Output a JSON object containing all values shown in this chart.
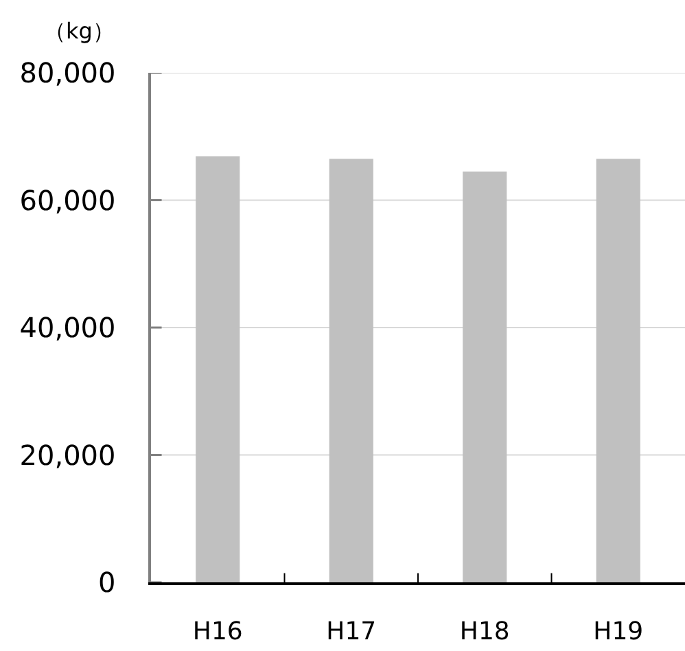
{
  "chart_data": {
    "type": "bar",
    "ylabel": "（kg）",
    "categories": [
      "H16",
      "H17",
      "H18",
      "H19"
    ],
    "values": [
      66900,
      66500,
      64500,
      66500
    ],
    "color": "#c0c0c0",
    "ylim": [
      0,
      80000
    ],
    "yticks": [
      0,
      {
        "value": 20000,
        "label": "20,000"
      },
      {
        "value": 40000,
        "label": "40,000"
      },
      {
        "value": 60000,
        "label": "60,000"
      },
      {
        "value": 80000,
        "label": "80,000"
      }
    ],
    "grid": "y"
  }
}
